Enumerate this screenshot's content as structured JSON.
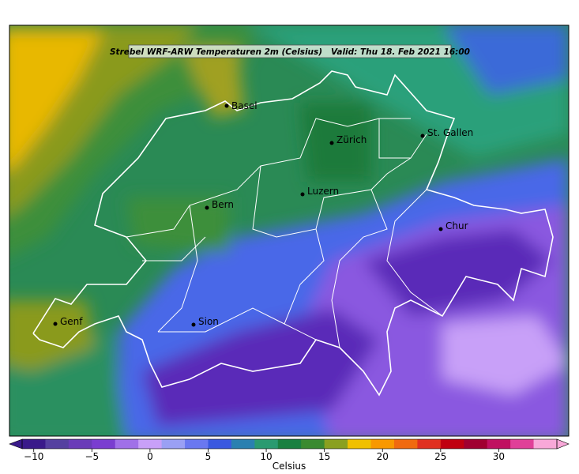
{
  "map": {
    "title": "Strebel WRF-ARW Temperaturen 2m (Celsius)   Valid: Thu 18. Feb 2021 16:00",
    "cities": [
      "Basel",
      "Zürich",
      "St. Gallen",
      "Luzern",
      "Bern",
      "Chur",
      "Sion",
      "Genf"
    ]
  },
  "colorbar": {
    "label": "Celsius",
    "lim": [
      -11,
      35
    ],
    "ticks": [
      {
        "value": -10,
        "label": "−10"
      },
      {
        "value": -5,
        "label": "−5"
      },
      0,
      5,
      10,
      15,
      20,
      25,
      30
    ],
    "colors": [
      "#3a1a8a",
      "#5540a0",
      "#6a3cb8",
      "#7a3ed0",
      "#a070e8",
      "#c8a0f8",
      "#9aa0f4",
      "#6a78f0",
      "#3a58e0",
      "#2a80b0",
      "#2a9a70",
      "#1a8040",
      "#3a8a30",
      "#8aa020",
      "#f0c000",
      "#f89800",
      "#f06a10",
      "#e03020",
      "#c00010",
      "#a00030",
      "#c01060",
      "#e04098",
      "#f8a8d8"
    ]
  }
}
